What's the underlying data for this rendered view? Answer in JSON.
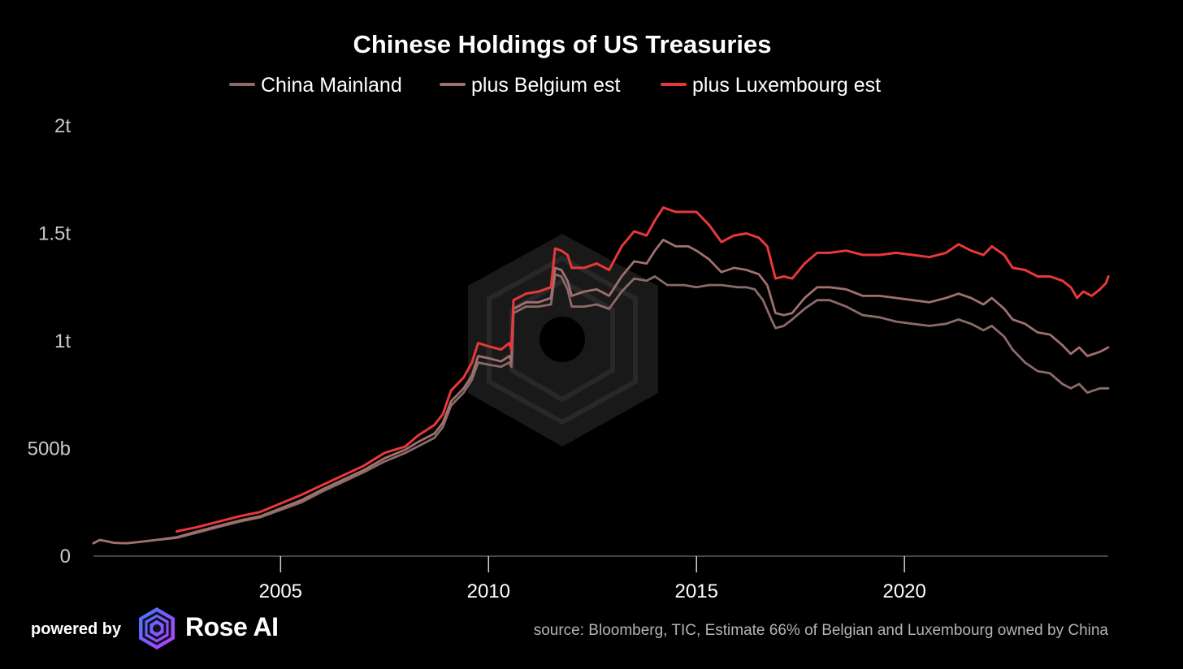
{
  "chart_data": {
    "type": "line",
    "title": "Chinese Holdings of US Treasuries",
    "xlabel": "",
    "ylabel": "",
    "xlim": [
      2000.5,
      2024.9
    ],
    "ylim": [
      0,
      2000
    ],
    "y_unit": "billions USD",
    "yticks": [
      {
        "value": 0,
        "label": "0"
      },
      {
        "value": 500,
        "label": "500b"
      },
      {
        "value": 1000,
        "label": "1t"
      },
      {
        "value": 1500,
        "label": "1.5t"
      },
      {
        "value": 2000,
        "label": "2t"
      }
    ],
    "xticks": [
      {
        "value": 2005,
        "label": "2005"
      },
      {
        "value": 2010,
        "label": "2010"
      },
      {
        "value": 2015,
        "label": "2015"
      },
      {
        "value": 2020,
        "label": "2020"
      }
    ],
    "grid": false,
    "legend_position": "top-center",
    "series": [
      {
        "name": "China Mainland",
        "color": "#8a6b69",
        "points": [
          [
            2000.5,
            60
          ],
          [
            2000.65,
            75
          ],
          [
            2000.8,
            70
          ],
          [
            2001.0,
            62
          ],
          [
            2001.3,
            60
          ],
          [
            2001.6,
            66
          ],
          [
            2002.0,
            75
          ],
          [
            2002.5,
            85
          ],
          [
            2003.0,
            110
          ],
          [
            2003.5,
            135
          ],
          [
            2004.0,
            160
          ],
          [
            2004.5,
            180
          ],
          [
            2005.0,
            215
          ],
          [
            2005.5,
            250
          ],
          [
            2006.0,
            300
          ],
          [
            2006.5,
            345
          ],
          [
            2007.0,
            390
          ],
          [
            2007.5,
            440
          ],
          [
            2008.0,
            480
          ],
          [
            2008.3,
            510
          ],
          [
            2008.7,
            550
          ],
          [
            2008.9,
            600
          ],
          [
            2009.1,
            700
          ],
          [
            2009.4,
            760
          ],
          [
            2009.6,
            820
          ],
          [
            2009.75,
            900
          ],
          [
            2010.0,
            890
          ],
          [
            2010.3,
            880
          ],
          [
            2010.5,
            900
          ],
          [
            2010.55,
            880
          ],
          [
            2010.6,
            1130
          ],
          [
            2010.9,
            1160
          ],
          [
            2011.2,
            1160
          ],
          [
            2011.5,
            1170
          ],
          [
            2011.6,
            1310
          ],
          [
            2011.75,
            1300
          ],
          [
            2011.9,
            1240
          ],
          [
            2012.0,
            1160
          ],
          [
            2012.3,
            1160
          ],
          [
            2012.6,
            1170
          ],
          [
            2012.9,
            1150
          ],
          [
            2013.2,
            1230
          ],
          [
            2013.5,
            1290
          ],
          [
            2013.8,
            1280
          ],
          [
            2014.0,
            1300
          ],
          [
            2014.3,
            1260
          ],
          [
            2014.7,
            1260
          ],
          [
            2015.0,
            1250
          ],
          [
            2015.3,
            1260
          ],
          [
            2015.6,
            1260
          ],
          [
            2016.0,
            1250
          ],
          [
            2016.2,
            1250
          ],
          [
            2016.4,
            1240
          ],
          [
            2016.6,
            1190
          ],
          [
            2016.8,
            1100
          ],
          [
            2016.9,
            1060
          ],
          [
            2017.1,
            1070
          ],
          [
            2017.3,
            1100
          ],
          [
            2017.6,
            1150
          ],
          [
            2017.9,
            1190
          ],
          [
            2018.2,
            1190
          ],
          [
            2018.6,
            1160
          ],
          [
            2019.0,
            1120
          ],
          [
            2019.4,
            1110
          ],
          [
            2019.8,
            1090
          ],
          [
            2020.2,
            1080
          ],
          [
            2020.6,
            1070
          ],
          [
            2021.0,
            1080
          ],
          [
            2021.3,
            1100
          ],
          [
            2021.6,
            1080
          ],
          [
            2021.9,
            1050
          ],
          [
            2022.1,
            1070
          ],
          [
            2022.4,
            1020
          ],
          [
            2022.6,
            960
          ],
          [
            2022.9,
            900
          ],
          [
            2023.2,
            860
          ],
          [
            2023.5,
            850
          ],
          [
            2023.8,
            800
          ],
          [
            2024.0,
            780
          ],
          [
            2024.2,
            800
          ],
          [
            2024.4,
            760
          ],
          [
            2024.7,
            780
          ],
          [
            2024.9,
            780
          ]
        ]
      },
      {
        "name": "plus Belgium est",
        "color": "#a0706e",
        "points": [
          [
            2000.5,
            60
          ],
          [
            2000.65,
            75
          ],
          [
            2000.8,
            70
          ],
          [
            2001.0,
            62
          ],
          [
            2001.3,
            60
          ],
          [
            2001.6,
            66
          ],
          [
            2002.0,
            75
          ],
          [
            2002.5,
            88
          ],
          [
            2003.0,
            115
          ],
          [
            2003.5,
            140
          ],
          [
            2004.0,
            165
          ],
          [
            2004.5,
            185
          ],
          [
            2005.0,
            222
          ],
          [
            2005.5,
            260
          ],
          [
            2006.0,
            310
          ],
          [
            2006.5,
            355
          ],
          [
            2007.0,
            400
          ],
          [
            2007.5,
            455
          ],
          [
            2008.0,
            495
          ],
          [
            2008.3,
            530
          ],
          [
            2008.7,
            570
          ],
          [
            2008.9,
            620
          ],
          [
            2009.1,
            720
          ],
          [
            2009.4,
            780
          ],
          [
            2009.6,
            840
          ],
          [
            2009.75,
            930
          ],
          [
            2010.0,
            920
          ],
          [
            2010.3,
            905
          ],
          [
            2010.5,
            930
          ],
          [
            2010.55,
            905
          ],
          [
            2010.6,
            1150
          ],
          [
            2010.9,
            1180
          ],
          [
            2011.2,
            1180
          ],
          [
            2011.5,
            1200
          ],
          [
            2011.6,
            1340
          ],
          [
            2011.75,
            1330
          ],
          [
            2011.9,
            1280
          ],
          [
            2012.0,
            1210
          ],
          [
            2012.3,
            1230
          ],
          [
            2012.6,
            1240
          ],
          [
            2012.9,
            1210
          ],
          [
            2013.2,
            1300
          ],
          [
            2013.5,
            1370
          ],
          [
            2013.8,
            1360
          ],
          [
            2014.0,
            1420
          ],
          [
            2014.2,
            1470
          ],
          [
            2014.5,
            1440
          ],
          [
            2014.8,
            1440
          ],
          [
            2015.0,
            1420
          ],
          [
            2015.3,
            1380
          ],
          [
            2015.6,
            1320
          ],
          [
            2015.9,
            1340
          ],
          [
            2016.2,
            1330
          ],
          [
            2016.5,
            1310
          ],
          [
            2016.7,
            1260
          ],
          [
            2016.9,
            1130
          ],
          [
            2017.1,
            1120
          ],
          [
            2017.3,
            1130
          ],
          [
            2017.6,
            1200
          ],
          [
            2017.9,
            1250
          ],
          [
            2018.2,
            1250
          ],
          [
            2018.6,
            1240
          ],
          [
            2019.0,
            1210
          ],
          [
            2019.4,
            1210
          ],
          [
            2019.8,
            1200
          ],
          [
            2020.2,
            1190
          ],
          [
            2020.6,
            1180
          ],
          [
            2021.0,
            1200
          ],
          [
            2021.3,
            1220
          ],
          [
            2021.6,
            1200
          ],
          [
            2021.9,
            1170
          ],
          [
            2022.1,
            1200
          ],
          [
            2022.4,
            1150
          ],
          [
            2022.6,
            1100
          ],
          [
            2022.9,
            1080
          ],
          [
            2023.2,
            1040
          ],
          [
            2023.5,
            1030
          ],
          [
            2023.8,
            980
          ],
          [
            2024.0,
            940
          ],
          [
            2024.2,
            970
          ],
          [
            2024.4,
            930
          ],
          [
            2024.7,
            950
          ],
          [
            2024.9,
            970
          ]
        ]
      },
      {
        "name": "plus Luxembourg est",
        "color": "#e8383a",
        "points": [
          [
            2002.5,
            115
          ],
          [
            2003.0,
            135
          ],
          [
            2003.5,
            160
          ],
          [
            2004.0,
            185
          ],
          [
            2004.5,
            205
          ],
          [
            2005.0,
            245
          ],
          [
            2005.5,
            285
          ],
          [
            2006.0,
            330
          ],
          [
            2006.5,
            375
          ],
          [
            2007.0,
            420
          ],
          [
            2007.5,
            480
          ],
          [
            2008.0,
            510
          ],
          [
            2008.3,
            560
          ],
          [
            2008.7,
            610
          ],
          [
            2008.9,
            660
          ],
          [
            2009.1,
            770
          ],
          [
            2009.4,
            830
          ],
          [
            2009.6,
            900
          ],
          [
            2009.75,
            990
          ],
          [
            2010.0,
            975
          ],
          [
            2010.3,
            960
          ],
          [
            2010.5,
            990
          ],
          [
            2010.55,
            960
          ],
          [
            2010.6,
            1190
          ],
          [
            2010.9,
            1220
          ],
          [
            2011.2,
            1230
          ],
          [
            2011.5,
            1250
          ],
          [
            2011.6,
            1430
          ],
          [
            2011.75,
            1420
          ],
          [
            2011.9,
            1400
          ],
          [
            2012.0,
            1340
          ],
          [
            2012.3,
            1340
          ],
          [
            2012.6,
            1360
          ],
          [
            2012.9,
            1330
          ],
          [
            2013.2,
            1440
          ],
          [
            2013.5,
            1510
          ],
          [
            2013.8,
            1490
          ],
          [
            2014.0,
            1560
          ],
          [
            2014.2,
            1620
          ],
          [
            2014.5,
            1600
          ],
          [
            2014.8,
            1600
          ],
          [
            2015.0,
            1600
          ],
          [
            2015.3,
            1540
          ],
          [
            2015.6,
            1460
          ],
          [
            2015.9,
            1490
          ],
          [
            2016.2,
            1500
          ],
          [
            2016.5,
            1480
          ],
          [
            2016.7,
            1440
          ],
          [
            2016.9,
            1290
          ],
          [
            2017.1,
            1300
          ],
          [
            2017.3,
            1290
          ],
          [
            2017.6,
            1360
          ],
          [
            2017.9,
            1410
          ],
          [
            2018.2,
            1410
          ],
          [
            2018.6,
            1420
          ],
          [
            2019.0,
            1400
          ],
          [
            2019.4,
            1400
          ],
          [
            2019.8,
            1410
          ],
          [
            2020.2,
            1400
          ],
          [
            2020.6,
            1390
          ],
          [
            2021.0,
            1410
          ],
          [
            2021.3,
            1450
          ],
          [
            2021.6,
            1420
          ],
          [
            2021.9,
            1400
          ],
          [
            2022.1,
            1440
          ],
          [
            2022.4,
            1400
          ],
          [
            2022.6,
            1340
          ],
          [
            2022.9,
            1330
          ],
          [
            2023.2,
            1300
          ],
          [
            2023.5,
            1300
          ],
          [
            2023.8,
            1280
          ],
          [
            2024.0,
            1250
          ],
          [
            2024.15,
            1200
          ],
          [
            2024.3,
            1230
          ],
          [
            2024.5,
            1210
          ],
          [
            2024.7,
            1240
          ],
          [
            2024.85,
            1270
          ],
          [
            2024.9,
            1300
          ]
        ]
      }
    ]
  },
  "footer": {
    "powered_by": "powered by",
    "brand": "Rose AI",
    "source": "source: Bloomberg, TIC, Estimate 66% of Belgian and Luxembourg owned by China"
  },
  "colors": {
    "background": "#000000",
    "axis": "#5a5a5a",
    "watermark": "#3a3a3a",
    "brand_gradient_start": "#3b7bff",
    "brand_gradient_end": "#c23bff"
  }
}
